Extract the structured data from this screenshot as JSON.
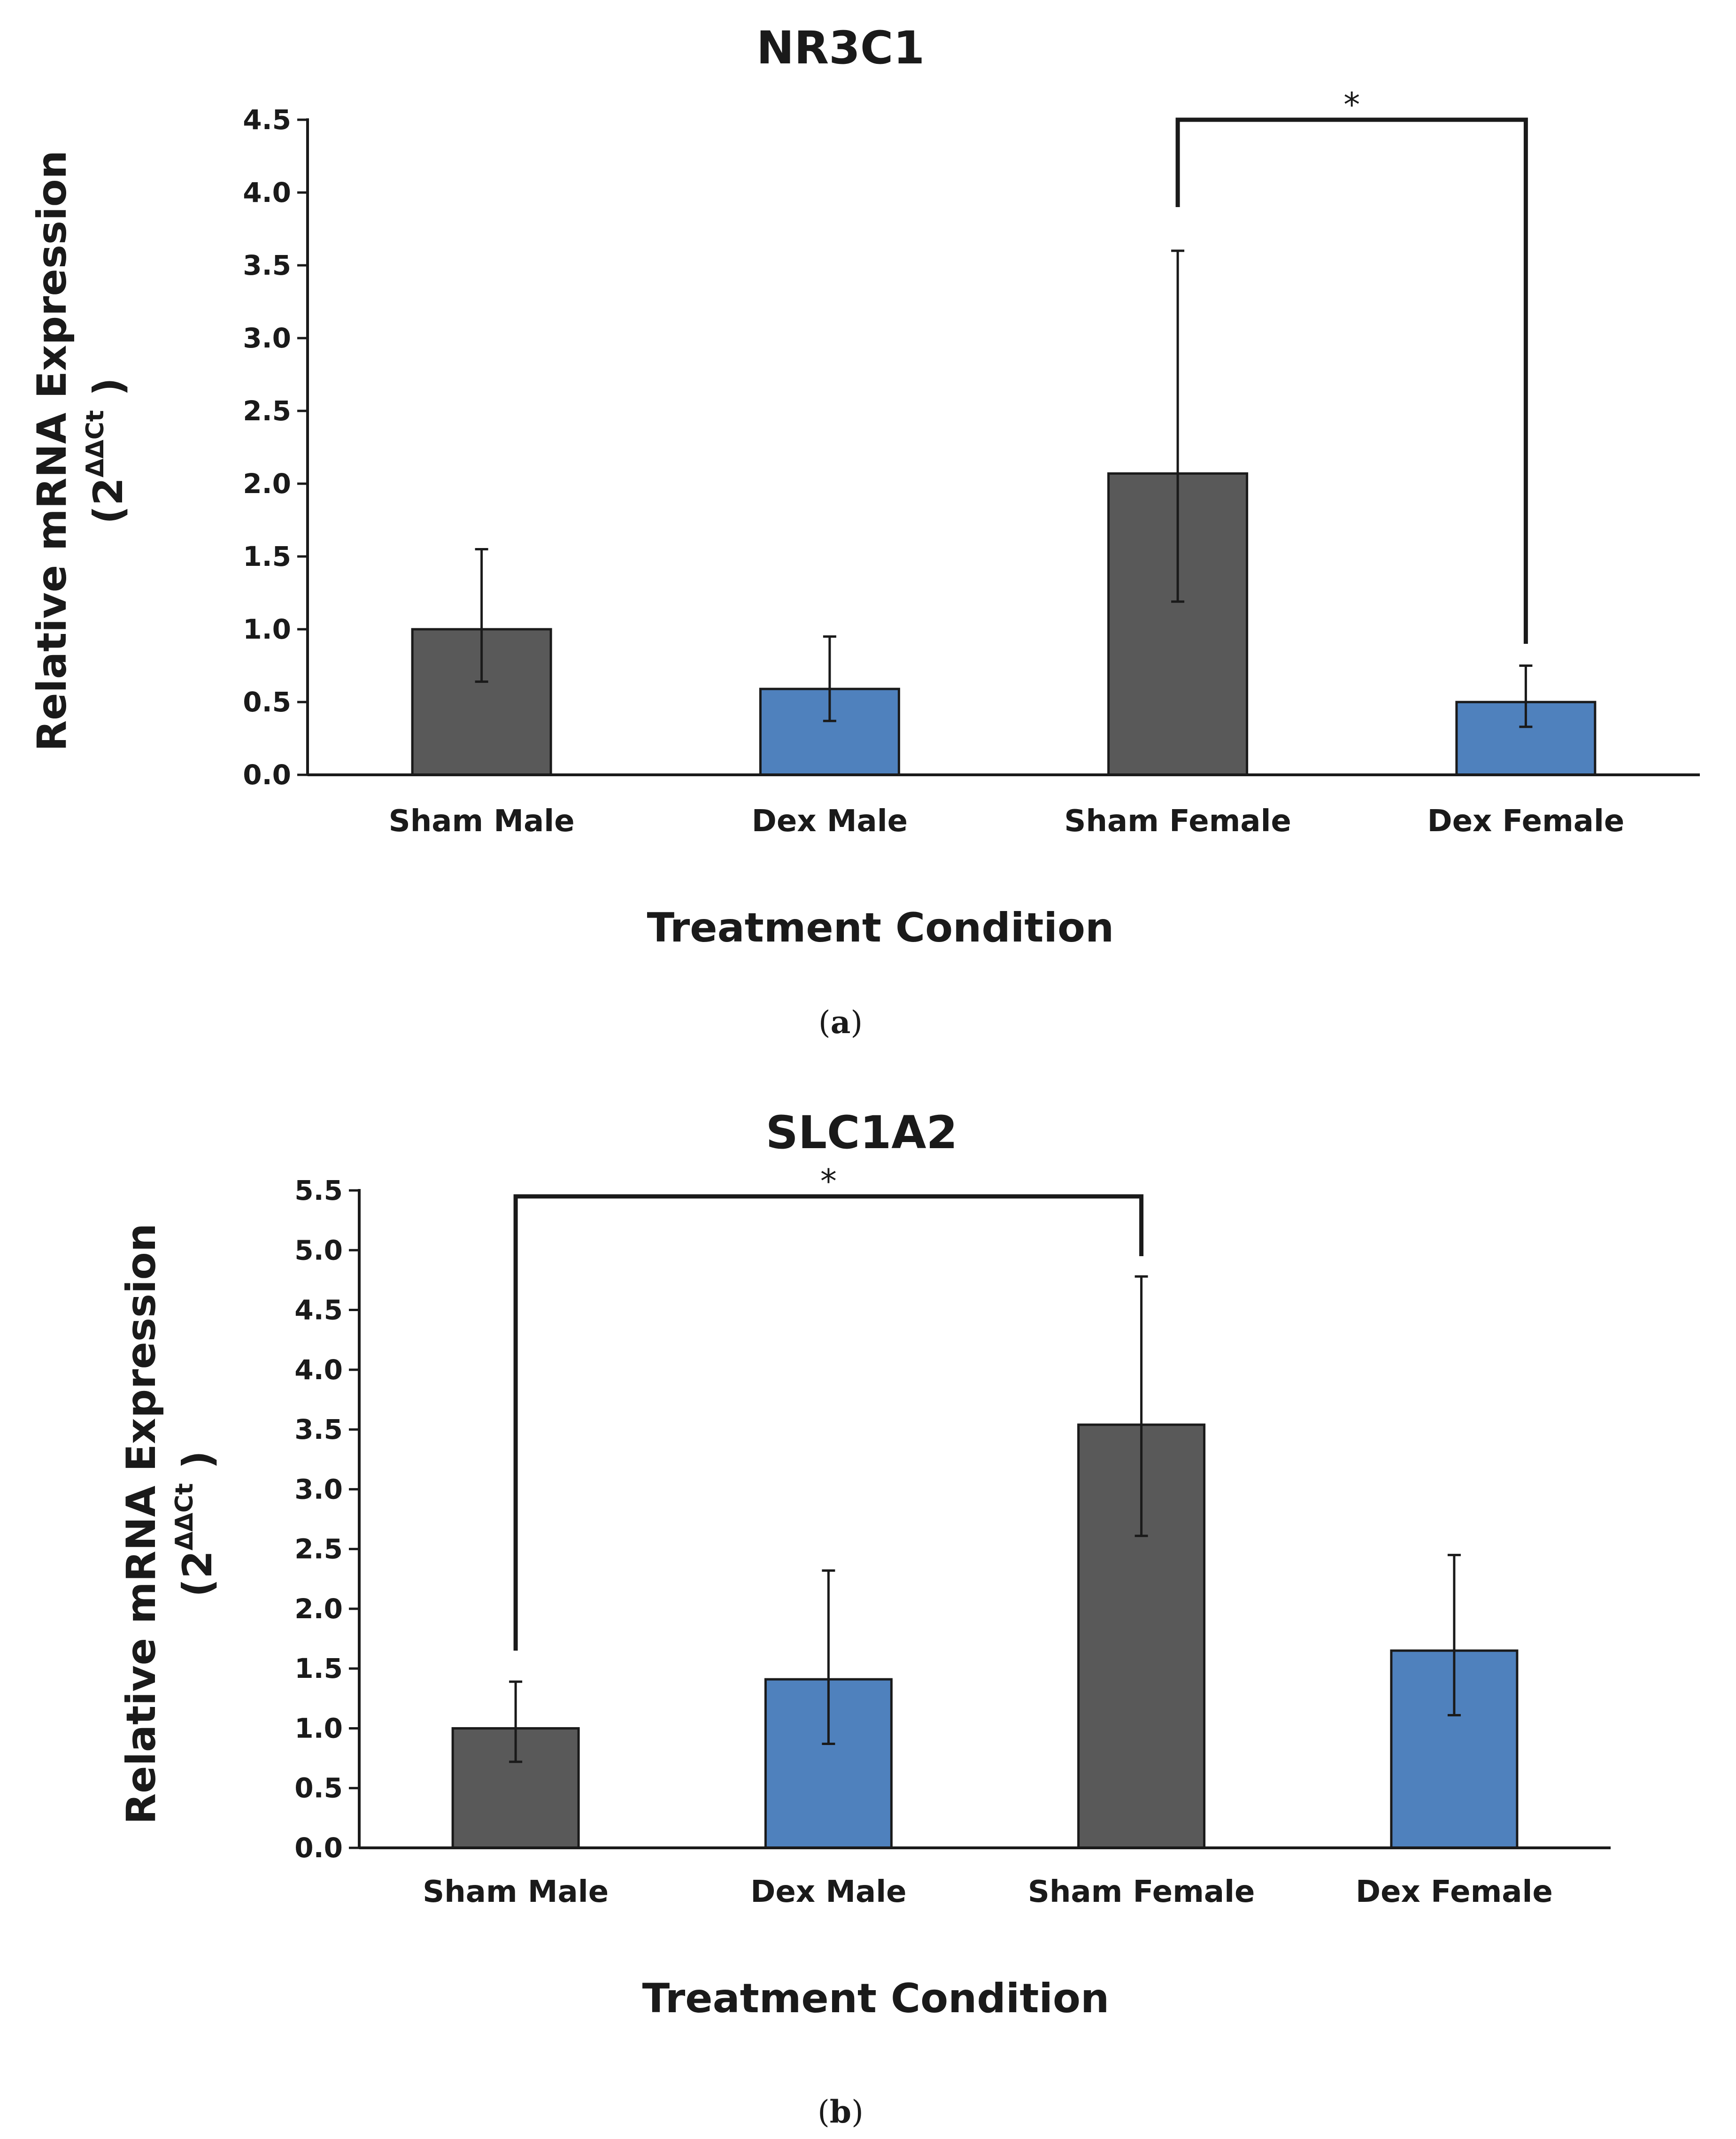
{
  "chart_data": [
    {
      "type": "bar",
      "panel": "a",
      "title": "NR3C1",
      "ylabel": "Relative mRNA Expression",
      "ylabel_unit": {
        "open": "(2",
        "sup": "ΔΔCt",
        "close": " )"
      },
      "xlabel": "Treatment Condition",
      "caption": {
        "open": "(",
        "letter": "a",
        "close": ")"
      },
      "categories": [
        "Sham Male",
        "Dex Male",
        "Sham Female",
        "Dex Female"
      ],
      "values": [
        1.0,
        0.59,
        2.07,
        0.5
      ],
      "error_low": [
        0.64,
        0.37,
        1.19,
        0.33
      ],
      "error_high": [
        1.55,
        0.95,
        3.6,
        0.75
      ],
      "bar_colors": [
        "#595959",
        "#4f81bd",
        "#595959",
        "#4f81bd"
      ],
      "ylim": [
        0,
        4.5
      ],
      "yticks": [
        "0.0",
        "0.5",
        "1.0",
        "1.5",
        "2.0",
        "2.5",
        "3.0",
        "3.5",
        "4.0",
        "4.5"
      ],
      "significance": {
        "from": 2,
        "to": 3,
        "label": "*",
        "level": 4.5,
        "from_end": 3.9,
        "to_end": 0.9
      }
    },
    {
      "type": "bar",
      "panel": "b",
      "title": "SLC1A2",
      "ylabel": "Relative mRNA Expression",
      "ylabel_unit": {
        "open": "(2",
        "sup": "ΔΔCt",
        "close": " )"
      },
      "xlabel": "Treatment Condition",
      "caption": {
        "open": "(",
        "letter": "b",
        "close": ")"
      },
      "categories": [
        "Sham Male",
        "Dex Male",
        "Sham Female",
        "Dex Female"
      ],
      "values": [
        1.0,
        1.41,
        3.54,
        1.65
      ],
      "error_low": [
        0.72,
        0.87,
        2.61,
        1.11
      ],
      "error_high": [
        1.39,
        2.32,
        4.78,
        2.45
      ],
      "bar_colors": [
        "#595959",
        "#4f81bd",
        "#595959",
        "#4f81bd"
      ],
      "ylim": [
        0,
        5.5
      ],
      "yticks": [
        "0.0",
        "0.5",
        "1.0",
        "1.5",
        "2.0",
        "2.5",
        "3.0",
        "3.5",
        "4.0",
        "4.5",
        "5.0",
        "5.5"
      ],
      "significance": {
        "from": 0,
        "to": 2,
        "label": "*",
        "level": 5.45,
        "from_end": 1.65,
        "to_end": 4.95
      }
    }
  ]
}
